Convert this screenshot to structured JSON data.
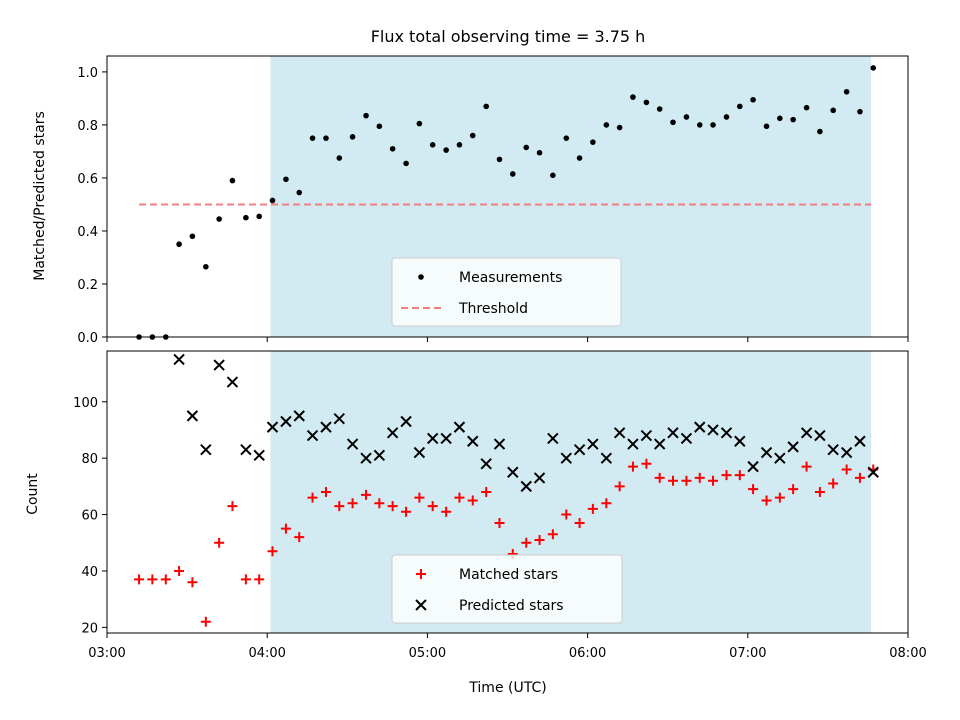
{
  "chart_data": {
    "type": "scatter",
    "title": "Flux total observing time = 3.75 h",
    "xlabel": "Time (UTC)",
    "x_unit": "hours UTC (decimal)",
    "xlim": [
      3.0,
      8.0
    ],
    "x_ticks": [
      3,
      4,
      5,
      6,
      7,
      8
    ],
    "x_tick_labels": [
      "03:00",
      "04:00",
      "05:00",
      "06:00",
      "07:00",
      "08:00"
    ],
    "shaded_region": {
      "x": [
        4.02,
        7.77
      ],
      "color": "#add8e6"
    },
    "colors": {
      "shade": "#add8e6",
      "threshold": "#f08080",
      "matched": "#ff0000",
      "predicted": "#000000",
      "measurements": "#000000"
    },
    "panels": [
      {
        "id": "ratio",
        "ylabel": "Matched/Predicted stars",
        "ylim": [
          0.0,
          1.06
        ],
        "y_ticks": [
          0.0,
          0.2,
          0.4,
          0.6,
          0.8,
          1.0
        ],
        "y_tick_labels": [
          "0.0",
          "0.2",
          "0.4",
          "0.6",
          "0.8",
          "1.0"
        ],
        "legend": {
          "placement": "lower-center",
          "entries": [
            "Measurements",
            "Threshold"
          ]
        },
        "threshold": {
          "name": "Threshold",
          "value": 0.5,
          "x_range": [
            3.2,
            7.77
          ]
        },
        "series": [
          {
            "name": "Measurements",
            "marker": "dot",
            "x": [
              3.2,
              3.283,
              3.367,
              3.45,
              3.533,
              3.617,
              3.7,
              3.783,
              3.867,
              3.95,
              4.033,
              4.117,
              4.2,
              4.283,
              4.367,
              4.45,
              4.533,
              4.617,
              4.7,
              4.783,
              4.867,
              4.95,
              5.033,
              5.117,
              5.2,
              5.283,
              5.367,
              5.45,
              5.533,
              5.617,
              5.7,
              5.783,
              5.867,
              5.95,
              6.033,
              6.117,
              6.2,
              6.283,
              6.367,
              6.45,
              6.533,
              6.617,
              6.7,
              6.783,
              6.867,
              6.95,
              7.033,
              7.117,
              7.2,
              7.283,
              7.367,
              7.45,
              7.533,
              7.617,
              7.7,
              7.783
            ],
            "y": [
              0.0,
              0.0,
              0.0,
              0.35,
              0.38,
              0.265,
              0.445,
              0.59,
              0.45,
              0.455,
              0.515,
              0.595,
              0.545,
              0.75,
              0.75,
              0.675,
              0.755,
              0.835,
              0.795,
              0.71,
              0.655,
              0.805,
              0.725,
              0.705,
              0.725,
              0.76,
              0.87,
              0.67,
              0.615,
              0.715,
              0.695,
              0.61,
              0.75,
              0.675,
              0.735,
              0.8,
              0.79,
              0.905,
              0.885,
              0.86,
              0.81,
              0.83,
              0.8,
              0.8,
              0.83,
              0.87,
              0.895,
              0.795,
              0.825,
              0.82,
              0.865,
              0.775,
              0.855,
              0.925,
              0.85,
              1.015
            ]
          }
        ]
      },
      {
        "id": "count",
        "ylabel": "Count",
        "ylim": [
          18,
          118
        ],
        "y_ticks": [
          20,
          40,
          60,
          80,
          100
        ],
        "y_tick_labels": [
          "20",
          "40",
          "60",
          "80",
          "100"
        ],
        "legend": {
          "placement": "lower-center",
          "entries": [
            "Matched stars",
            "Predicted stars"
          ]
        },
        "series": [
          {
            "name": "Matched stars",
            "marker": "plus",
            "x": [
              3.2,
              3.283,
              3.367,
              3.45,
              3.533,
              3.617,
              3.7,
              3.783,
              3.867,
              3.95,
              4.033,
              4.117,
              4.2,
              4.283,
              4.367,
              4.45,
              4.533,
              4.617,
              4.7,
              4.783,
              4.867,
              4.95,
              5.033,
              5.117,
              5.2,
              5.283,
              5.367,
              5.45,
              5.533,
              5.617,
              5.7,
              5.783,
              5.867,
              5.95,
              6.033,
              6.117,
              6.2,
              6.283,
              6.367,
              6.45,
              6.533,
              6.617,
              6.7,
              6.783,
              6.867,
              6.95,
              7.033,
              7.117,
              7.2,
              7.283,
              7.367,
              7.45,
              7.533,
              7.617,
              7.7,
              7.783
            ],
            "y": [
              37,
              37,
              37,
              40,
              36,
              22,
              50,
              63,
              37,
              37,
              47,
              55,
              52,
              66,
              68,
              63,
              64,
              67,
              64,
              63,
              61,
              66,
              63,
              61,
              66,
              65,
              68,
              57,
              46,
              50,
              51,
              53,
              60,
              57,
              62,
              64,
              70,
              77,
              78,
              73,
              72,
              72,
              73,
              72,
              74,
              74,
              69,
              65,
              66,
              69,
              77,
              68,
              71,
              76,
              73,
              76
            ]
          },
          {
            "name": "Predicted stars",
            "marker": "x",
            "x": [
              3.45,
              3.533,
              3.617,
              3.7,
              3.783,
              3.867,
              3.95,
              4.033,
              4.117,
              4.2,
              4.283,
              4.367,
              4.45,
              4.533,
              4.617,
              4.7,
              4.783,
              4.867,
              4.95,
              5.033,
              5.117,
              5.2,
              5.283,
              5.367,
              5.45,
              5.533,
              5.617,
              5.7,
              5.783,
              5.867,
              5.95,
              6.033,
              6.117,
              6.2,
              6.283,
              6.367,
              6.45,
              6.533,
              6.617,
              6.7,
              6.783,
              6.867,
              6.95,
              7.033,
              7.117,
              7.2,
              7.283,
              7.367,
              7.45,
              7.533,
              7.617,
              7.7,
              7.783
            ],
            "y": [
              115,
              95,
              83,
              113,
              107,
              83,
              81,
              91,
              93,
              95,
              88,
              91,
              94,
              85,
              80,
              81,
              89,
              93,
              82,
              87,
              87,
              91,
              86,
              78,
              85,
              75,
              70,
              73,
              87,
              80,
              83,
              85,
              80,
              89,
              85,
              88,
              85,
              89,
              87,
              91,
              90,
              89,
              86,
              77,
              82,
              80,
              84,
              89,
              88,
              83,
              82,
              86,
              75
            ]
          }
        ]
      }
    ]
  }
}
